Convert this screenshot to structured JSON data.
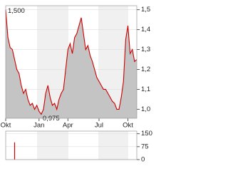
{
  "chart_data": [
    {
      "type": "area",
      "categories": [
        "Okt",
        null,
        null,
        null,
        null,
        null,
        null,
        null,
        null,
        null,
        null,
        null,
        null,
        null,
        null,
        "Jan",
        null,
        null,
        null,
        null,
        null,
        null,
        null,
        null,
        null,
        null,
        null,
        null,
        "Apr",
        null,
        null,
        null,
        null,
        null,
        null,
        null,
        null,
        null,
        null,
        null,
        null,
        null,
        "Jul",
        null,
        null,
        null,
        null,
        null,
        null,
        null,
        null,
        null,
        null,
        null,
        null,
        "Okt",
        null,
        null,
        null,
        null
      ],
      "values": [
        1.5,
        1.36,
        1.31,
        1.3,
        1.25,
        1.2,
        1.18,
        1.12,
        1.08,
        1.1,
        1.05,
        1.02,
        1.03,
        1.0,
        1.02,
        0.99,
        0.975,
        1.0,
        1.08,
        1.12,
        1.06,
        1.02,
        1.03,
        1.0,
        1.05,
        1.08,
        1.1,
        1.2,
        1.3,
        1.33,
        1.28,
        1.36,
        1.38,
        1.42,
        1.46,
        1.38,
        1.3,
        1.32,
        1.27,
        1.24,
        1.2,
        1.16,
        1.14,
        1.12,
        1.1,
        1.1,
        1.08,
        1.06,
        1.04,
        1.03,
        1.0,
        1.0,
        1.06,
        1.14,
        1.35,
        1.42,
        1.28,
        1.3,
        1.24,
        1.25
      ],
      "color": "#cc0000",
      "fill": "#c4c4c4",
      "high": {
        "value": 1.5,
        "label": "1,500"
      },
      "low": {
        "value": 0.975,
        "label": "0,975"
      },
      "ylim": [
        0.955,
        1.52
      ],
      "yticks": [
        {
          "value": 1.0,
          "label": "1,0"
        },
        {
          "value": 1.1,
          "label": "1,1"
        },
        {
          "value": 1.2,
          "label": "1,2"
        },
        {
          "value": 1.3,
          "label": "1,3"
        },
        {
          "value": 1.4,
          "label": "1,4"
        },
        {
          "value": 1.5,
          "label": "1,5"
        }
      ]
    },
    {
      "type": "bar",
      "values": [
        0,
        0,
        0,
        0,
        100,
        0,
        0,
        0,
        0,
        0,
        0,
        0,
        0,
        0,
        0,
        0,
        0,
        0,
        0,
        0,
        0,
        0,
        0,
        0,
        0,
        0,
        0,
        0,
        0,
        0,
        0,
        0,
        0,
        0,
        0,
        0,
        0,
        0,
        0,
        0,
        0,
        0,
        0,
        0,
        0,
        0,
        0,
        0,
        0,
        0,
        0,
        0,
        0,
        0,
        0,
        0,
        0,
        0,
        0,
        0
      ],
      "color": "#cc0000",
      "ylim": [
        0,
        165
      ],
      "yticks": [
        0,
        75,
        150
      ]
    }
  ]
}
